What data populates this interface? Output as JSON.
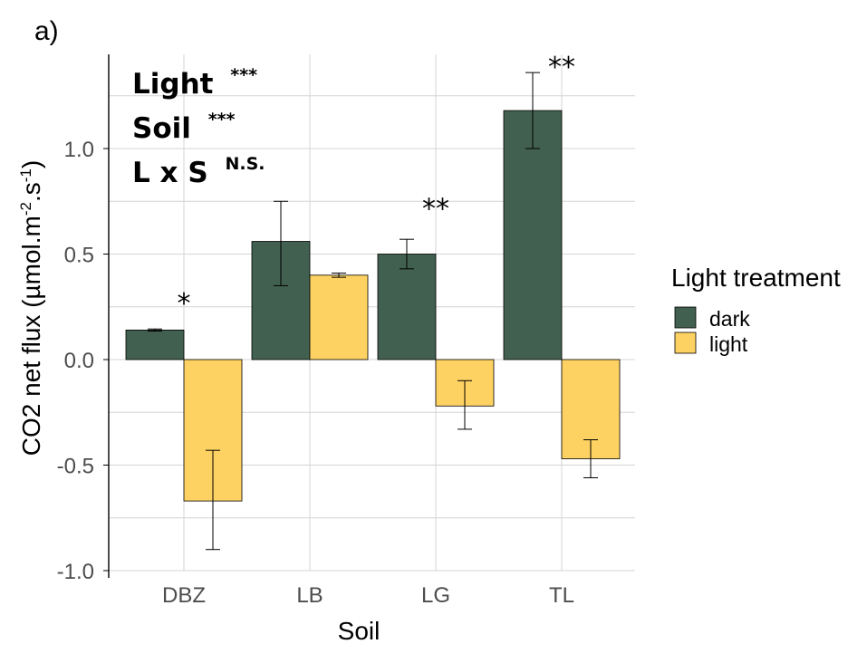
{
  "panel_label": "a)",
  "colors": {
    "dark": "#41604f",
    "light": "#fed262",
    "grid": "#d4d4d4",
    "axis": "#000000"
  },
  "stats": [
    {
      "label": "Light",
      "sup": "***"
    },
    {
      "label": "Soil",
      "sup": "***"
    },
    {
      "label": "L x S",
      "sup": "N.S."
    }
  ],
  "legend": {
    "title": "Light treatment",
    "items": [
      {
        "label": "dark",
        "color_key": "dark"
      },
      {
        "label": "light",
        "color_key": "light"
      }
    ]
  },
  "chart_data": {
    "type": "bar",
    "xlabel": "Soil",
    "ylabel_main": "CO2 net flux (µmol.m",
    "ylabel_sup1": "-2",
    "ylabel_mid": ".s",
    "ylabel_sup2": "-1",
    "ylabel_end": ")",
    "categories": [
      "DBZ",
      "LB",
      "LG",
      "TL"
    ],
    "ylim": [
      -1.0,
      1.4
    ],
    "yticks": [
      -1.0,
      -0.5,
      0.0,
      0.5,
      1.0
    ],
    "ytick_labels": [
      "-1.0",
      "-0.5",
      "0.0",
      "0.5",
      "1.0"
    ],
    "grid": true,
    "series": [
      {
        "name": "dark",
        "values": [
          0.14,
          0.56,
          0.5,
          1.18
        ],
        "err_low": [
          0.135,
          0.35,
          0.43,
          1.0
        ],
        "err_high": [
          0.145,
          0.75,
          0.57,
          1.36
        ]
      },
      {
        "name": "light",
        "values": [
          -0.67,
          0.4,
          -0.22,
          -0.47
        ],
        "err_low": [
          -0.9,
          0.39,
          -0.33,
          -0.56
        ],
        "err_high": [
          -0.43,
          0.41,
          -0.1,
          -0.38
        ]
      }
    ],
    "significance": [
      "*",
      "",
      "**",
      "**"
    ],
    "significance_y": [
      0.3,
      null,
      0.75,
      1.42
    ]
  }
}
